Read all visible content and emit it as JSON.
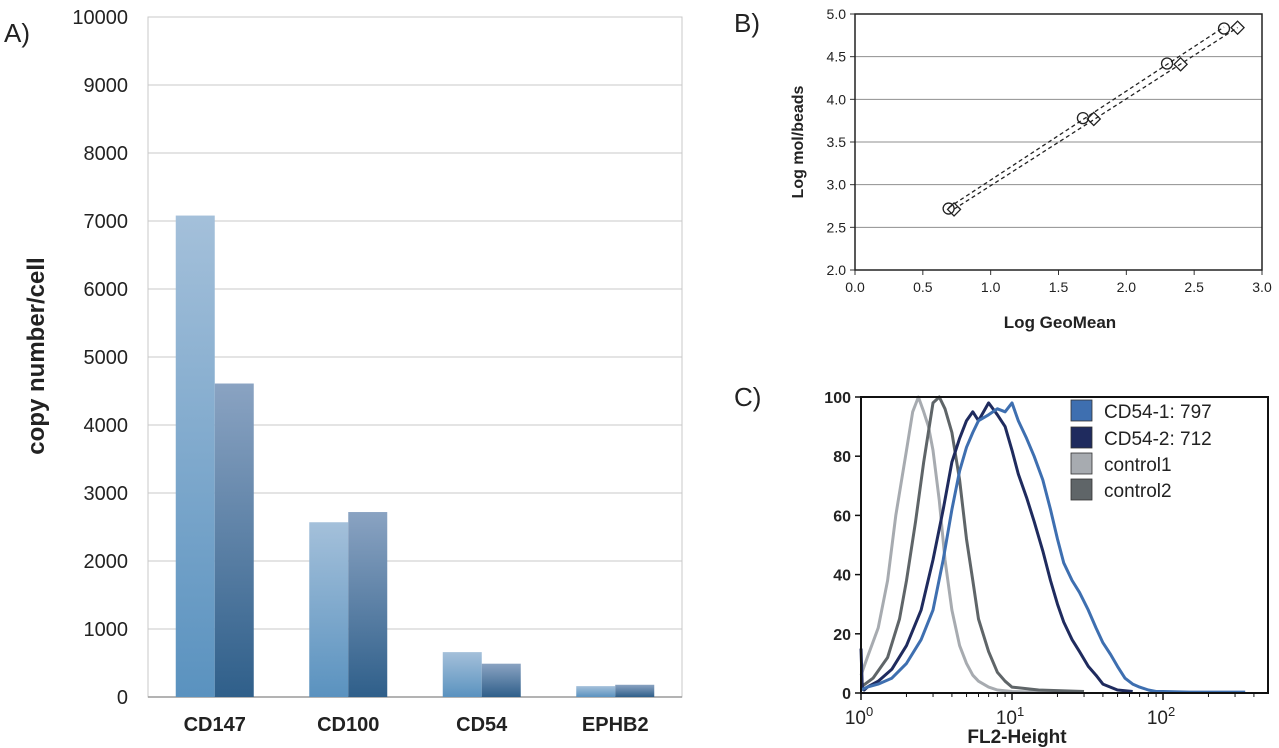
{
  "panels": [
    {
      "label": "A)",
      "chart_data": {
        "type": "bar",
        "ylabel": "copy number/cell",
        "xlabel": "",
        "ylim": [
          0,
          10000
        ],
        "yticks": [
          0,
          1000,
          2000,
          3000,
          4000,
          5000,
          6000,
          7000,
          8000,
          9000,
          10000
        ],
        "grid": true,
        "categories": [
          "CD147",
          "CD100",
          "CD54",
          "EPHB2"
        ],
        "series": [
          {
            "values": [
              7080,
              2570,
              660,
              160
            ]
          },
          {
            "values": [
              4610,
              2720,
              490,
              180
            ]
          }
        ],
        "colors": {
          "series1_top": "#a4c0da",
          "series1_bottom": "#5a92bf",
          "series2_top": "#8aa3c2",
          "series2_bottom": "#2f5f8a"
        }
      }
    },
    {
      "label": "B)",
      "chart_data": {
        "type": "scatter",
        "xlabel": "Log GeoMean",
        "ylabel": "Log mol/beads",
        "xlim": [
          0,
          3.0
        ],
        "ylim": [
          2.0,
          5.0
        ],
        "xticks": [
          "0.0",
          "0.5",
          "1.0",
          "1.5",
          "2.0",
          "2.5",
          "3.0"
        ],
        "yticks": [
          "2.0",
          "2.5",
          "3.0",
          "3.5",
          "4.0",
          "4.5",
          "5.0"
        ],
        "grid": true,
        "series": [
          {
            "marker": "circle",
            "x": [
              0.69,
              1.68,
              2.3,
              2.72
            ],
            "y": [
              2.72,
              3.78,
              4.42,
              4.83
            ]
          },
          {
            "marker": "diamond",
            "x": [
              0.73,
              1.76,
              2.4,
              2.82
            ],
            "y": [
              2.71,
              3.77,
              4.41,
              4.84
            ]
          }
        ],
        "trendline": "dashed"
      }
    },
    {
      "label": "C)",
      "chart_data": {
        "type": "line",
        "xlabel": "FL2-Height",
        "x_scale": "log",
        "xlim": [
          1,
          400
        ],
        "ylim": [
          0,
          100
        ],
        "yticks": [
          "0",
          "20",
          "40",
          "60",
          "80",
          "100"
        ],
        "xticks": [
          {
            "base": "10",
            "exp": "0"
          },
          {
            "base": "10",
            "exp": "1"
          },
          {
            "base": "10",
            "exp": "2"
          }
        ],
        "legend_position": "top-right",
        "series": [
          {
            "name": "CD54-1: 797",
            "color": "#3e6fb0",
            "x": [
              1.0,
              1.1,
              1.3,
              1.6,
              2.0,
              2.5,
              3.0,
              3.5,
              4.0,
              4.5,
              5.0,
              5.5,
              6.0,
              7.0,
              8.0,
              9.0,
              10.0,
              11.0,
              12.5,
              14.0,
              16.0,
              18.0,
              20.0,
              22.0,
              25.0,
              28.0,
              32.0,
              36.0,
              40.0,
              45.0,
              50.0,
              56.0,
              63.0,
              70.0,
              80.0,
              90.0,
              100.0,
              150.0,
              250.0,
              350.0
            ],
            "y": [
              1,
              2,
              3,
              5,
              10,
              18,
              28,
              45,
              62,
              75,
              83,
              88,
              92,
              94,
              96,
              95,
              98,
              92,
              86,
              80,
              72,
              62,
              52,
              44,
              38,
              34,
              28,
              22,
              17,
              13,
              9,
              5,
              3,
              2,
              1,
              0.5,
              0.5,
              0.3,
              0.3,
              0.3
            ]
          },
          {
            "name": "CD54-2: 712",
            "color": "#1f2b5e",
            "x": [
              1.0,
              1.02,
              1.05,
              1.1,
              1.3,
              1.6,
              2.0,
              2.5,
              3.0,
              3.5,
              4.0,
              4.5,
              5.0,
              5.5,
              6.0,
              7.0,
              8.0,
              9.0,
              10.0,
              11.0,
              12.5,
              14.0,
              16.0,
              18.0,
              20.0,
              22.0,
              25.0,
              28.0,
              32.0,
              36.0,
              40.0,
              50.0,
              63.0
            ],
            "y": [
              15,
              2,
              1,
              2,
              4,
              8,
              16,
              28,
              45,
              62,
              78,
              86,
              92,
              95,
              92,
              98,
              94,
              90,
              82,
              74,
              66,
              58,
              48,
              38,
              30,
              24,
              18,
              14,
              9,
              6,
              3,
              1,
              0.5
            ]
          },
          {
            "name": "control1",
            "color": "#a7abb0",
            "x": [
              1.0,
              1.1,
              1.3,
              1.5,
              1.7,
              2.0,
              2.2,
              2.4,
              2.6,
              2.8,
              3.0,
              3.3,
              3.6,
              4.0,
              4.5,
              5.0,
              5.5,
              6.0,
              7.0,
              8.0,
              10.0,
              15.0,
              30.0
            ],
            "y": [
              6,
              12,
              22,
              38,
              60,
              82,
              95,
              100,
              95,
              90,
              82,
              65,
              45,
              28,
              16,
              10,
              6,
              4,
              2,
              1,
              0.5,
              0.3,
              0.3
            ]
          },
          {
            "name": "control2",
            "color": "#5f6568",
            "x": [
              1.0,
              1.2,
              1.5,
              1.8,
              2.0,
              2.3,
              2.6,
              3.0,
              3.3,
              3.6,
              4.0,
              4.5,
              5.0,
              5.5,
              6.0,
              7.0,
              8.0,
              9.0,
              10.0,
              15.0,
              30.0
            ],
            "y": [
              2,
              5,
              12,
              25,
              38,
              58,
              78,
              98,
              100,
              96,
              88,
              72,
              52,
              38,
              25,
              14,
              7,
              4,
              2,
              1,
              0.5
            ]
          }
        ]
      }
    }
  ]
}
